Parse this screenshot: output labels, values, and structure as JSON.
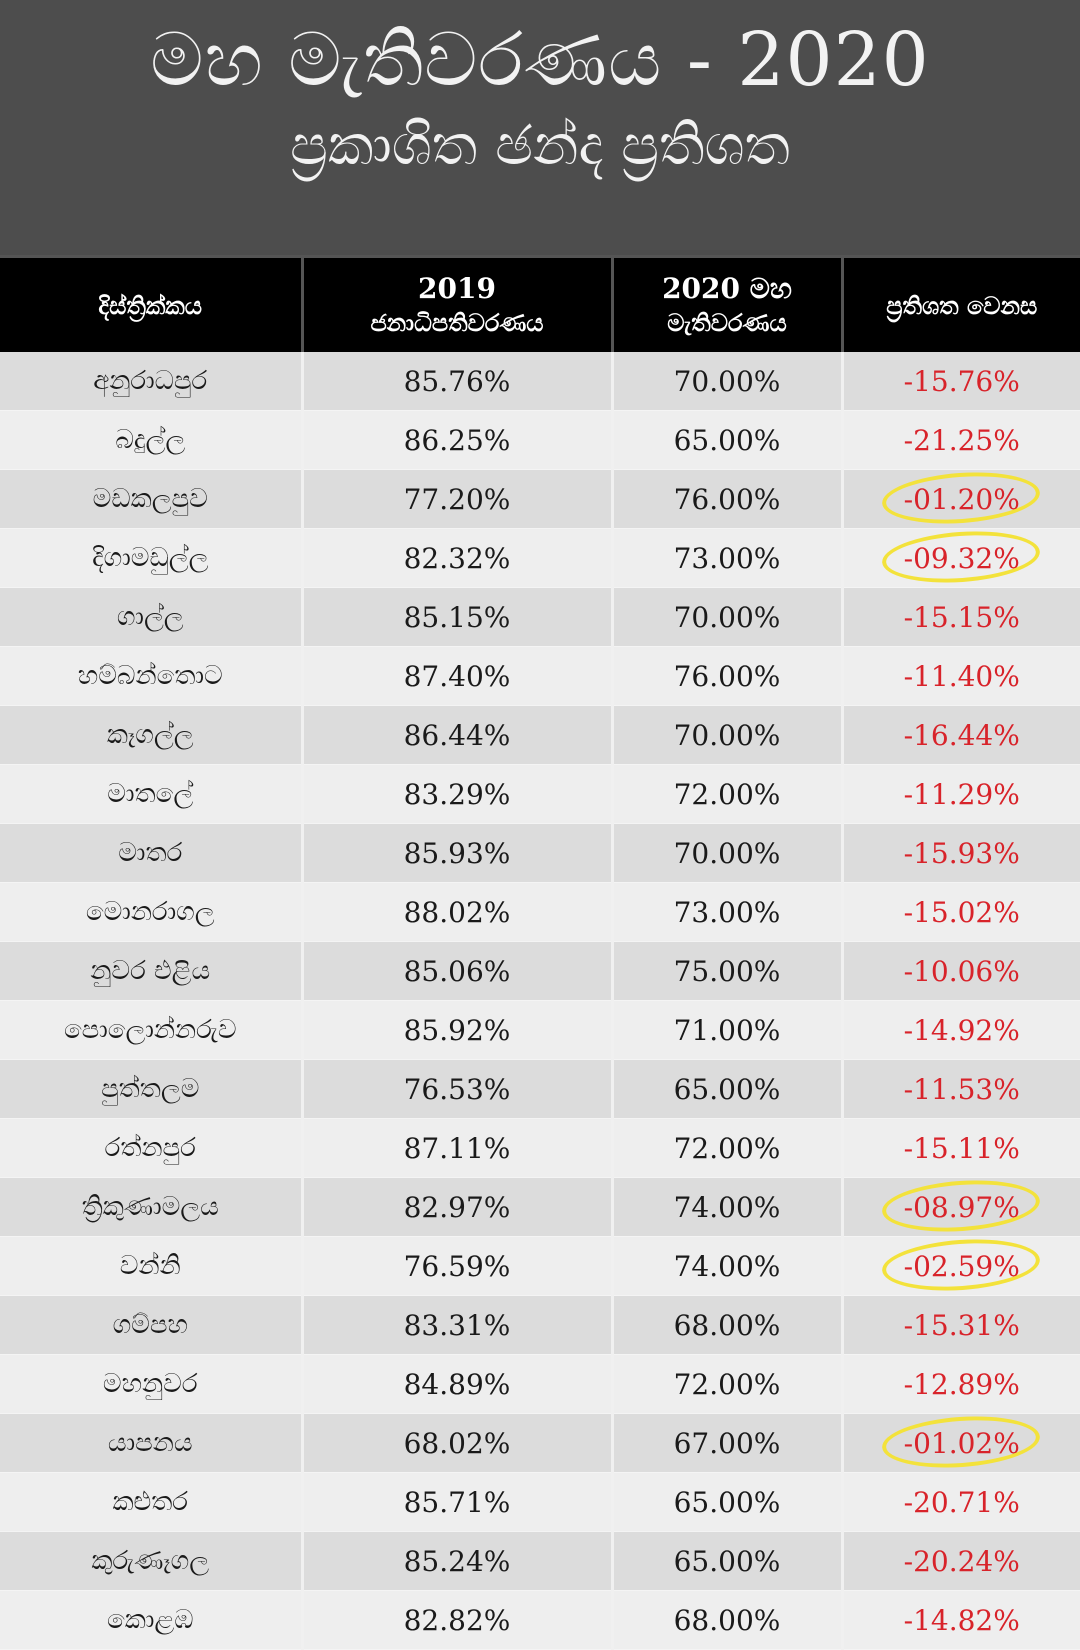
{
  "header": {
    "title": "මහ මැතිවරණය - 2020",
    "subtitle": "ප්‍රකාශිත ඡන්ද ප්‍රතිශත"
  },
  "table": {
    "columns": {
      "district": "දිස්ත්‍රික්කය",
      "y2019_line1": "2019",
      "y2019_line2": "ජනාධිපතිවරණය",
      "y2020_line1": "2020 මහ",
      "y2020_line2": "මැතිවරණය",
      "change": "ප්‍රතිශත වෙනස"
    },
    "rows": [
      {
        "district": "අනුරාධපුර",
        "y2019": "85.76%",
        "y2020": "70.00%",
        "change": "-15.76%",
        "highlighted": false
      },
      {
        "district": "බදුල්ල",
        "y2019": "86.25%",
        "y2020": "65.00%",
        "change": "-21.25%",
        "highlighted": false
      },
      {
        "district": "මඩකලපුව",
        "y2019": "77.20%",
        "y2020": "76.00%",
        "change": "-01.20%",
        "highlighted": true
      },
      {
        "district": "දිගාමඩුල්ල",
        "y2019": "82.32%",
        "y2020": "73.00%",
        "change": "-09.32%",
        "highlighted": true
      },
      {
        "district": "ගාල්ල",
        "y2019": "85.15%",
        "y2020": "70.00%",
        "change": "-15.15%",
        "highlighted": false
      },
      {
        "district": "හම්බන්තොට",
        "y2019": "87.40%",
        "y2020": "76.00%",
        "change": "-11.40%",
        "highlighted": false
      },
      {
        "district": "කෑගල්ල",
        "y2019": "86.44%",
        "y2020": "70.00%",
        "change": "-16.44%",
        "highlighted": false
      },
      {
        "district": "මාතලේ",
        "y2019": "83.29%",
        "y2020": "72.00%",
        "change": "-11.29%",
        "highlighted": false
      },
      {
        "district": "මාතර",
        "y2019": "85.93%",
        "y2020": "70.00%",
        "change": "-15.93%",
        "highlighted": false
      },
      {
        "district": "මොනරාගල",
        "y2019": "88.02%",
        "y2020": "73.00%",
        "change": "-15.02%",
        "highlighted": false
      },
      {
        "district": "නුවර එළිය",
        "y2019": "85.06%",
        "y2020": "75.00%",
        "change": "-10.06%",
        "highlighted": false
      },
      {
        "district": "පොලොන්නරුව",
        "y2019": "85.92%",
        "y2020": "71.00%",
        "change": "-14.92%",
        "highlighted": false
      },
      {
        "district": "පුත්තලම",
        "y2019": "76.53%",
        "y2020": "65.00%",
        "change": "-11.53%",
        "highlighted": false
      },
      {
        "district": "රත්නපුර",
        "y2019": "87.11%",
        "y2020": "72.00%",
        "change": "-15.11%",
        "highlighted": false
      },
      {
        "district": "ත්‍රිකුණාමලය",
        "y2019": "82.97%",
        "y2020": "74.00%",
        "change": "-08.97%",
        "highlighted": true
      },
      {
        "district": "වන්නි",
        "y2019": "76.59%",
        "y2020": "74.00%",
        "change": "-02.59%",
        "highlighted": true
      },
      {
        "district": "ගම්පහ",
        "y2019": "83.31%",
        "y2020": "68.00%",
        "change": "-15.31%",
        "highlighted": false
      },
      {
        "district": "මහනුවර",
        "y2019": "84.89%",
        "y2020": "72.00%",
        "change": "-12.89%",
        "highlighted": false
      },
      {
        "district": "යාපනය",
        "y2019": "68.02%",
        "y2020": "67.00%",
        "change": "-01.02%",
        "highlighted": true
      },
      {
        "district": "කළුතර",
        "y2019": "85.71%",
        "y2020": "65.00%",
        "change": "-20.71%",
        "highlighted": false
      },
      {
        "district": "කුරුණෑගල",
        "y2019": "85.24%",
        "y2020": "65.00%",
        "change": "-20.24%",
        "highlighted": false
      },
      {
        "district": "කොළඹ",
        "y2019": "82.82%",
        "y2020": "68.00%",
        "change": "-14.82%",
        "highlighted": false
      }
    ]
  },
  "colors": {
    "header_bg": "#4d4d4d",
    "table_head_bg": "#000000",
    "negative_value": "#d8232a",
    "highlight_mark": "#f3e23b"
  }
}
